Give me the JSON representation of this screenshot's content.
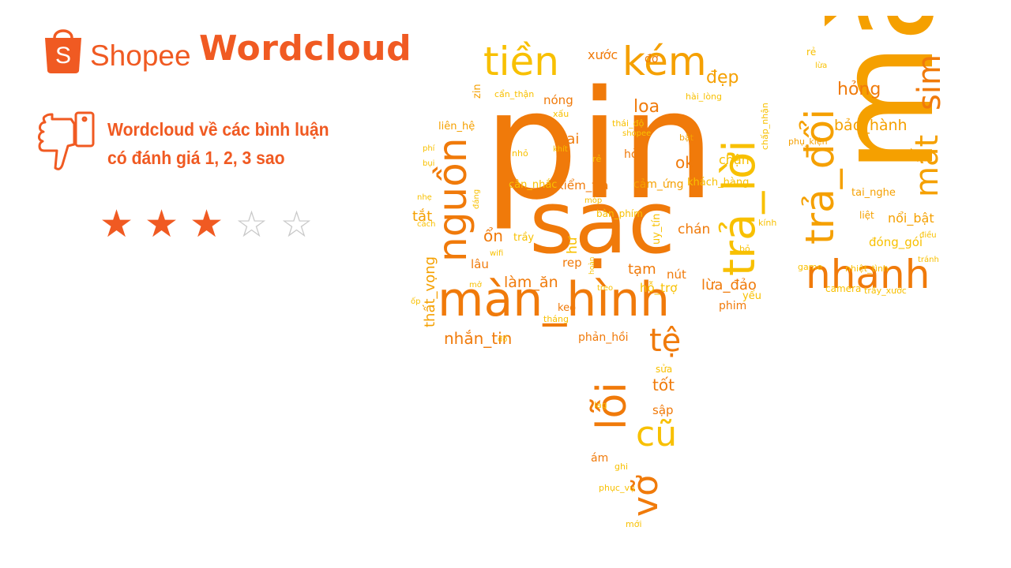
{
  "header": {
    "brand": "Shopee",
    "logo_letter": "S",
    "title": "Wordcloud"
  },
  "caption": {
    "line1": "Wordcloud về các bình luận",
    "line2": "có đánh giá 1, 2, 3 sao",
    "icon": "thumbs-down-phone-icon"
  },
  "rating": {
    "stars_filled": 3,
    "stars_total": 5
  },
  "colors": {
    "brand": "#f05a22",
    "cloud_dark": "#f07a0a",
    "cloud_mid": "#f5a000",
    "cloud_light": "#f8c000"
  },
  "wordcloud": {
    "words": [
      "pin",
      "sạc",
      "màu",
      "màn_hình",
      "trả_lời",
      "tiền",
      "kém",
      "nguồn",
      "trả_đổi",
      "nhanh",
      "lỗi",
      "vỡ",
      "cũ",
      "tệ",
      "mất",
      "sim",
      "hỏng",
      "bảo_hành",
      "đẹp",
      "xước",
      "đơ",
      "rẻ",
      "lừa",
      "hài_lòng",
      "loa",
      "sai",
      "ok",
      "chậm",
      "cảm_ứng",
      "khách_hàng",
      "kiểm_tra",
      "cân_nhắc",
      "bàn_phím",
      "uy_tín",
      "chán",
      "ổn",
      "trầy",
      "lâu",
      "làm_ăn",
      "nút",
      "lừa_đảo",
      "hỗ_trợ",
      "yếu",
      "tạm",
      "rep",
      "hư",
      "keo",
      "tháng",
      "phản_hồi",
      "nhắn_tin",
      "thất_vọng",
      "tắt",
      "tốt",
      "sửa",
      "sập",
      "lag",
      "ám",
      "ghi",
      "phục_vụ",
      "mới",
      "liên_hệ",
      "zin",
      "cẩn_thận",
      "nóng",
      "xấu",
      "thái_độ",
      "shopee",
      "bật",
      "hở",
      "rẻ",
      "khít",
      "nhỏ",
      "phí",
      "bụi",
      "nhẹ",
      "cách",
      "ốp",
      "mở",
      "wifi",
      "đáng",
      "móp",
      "treo",
      "hoàn",
      "đổ",
      "phụ_kiện",
      "tai_nghe",
      "liệt",
      "nổi_bật",
      "kính",
      "đóng_gói",
      "bỏ",
      "điều",
      "game",
      "nhiệt_tình",
      "tránh",
      "camera",
      "trầy_xước",
      "phim",
      "chấp_nhận"
    ]
  }
}
